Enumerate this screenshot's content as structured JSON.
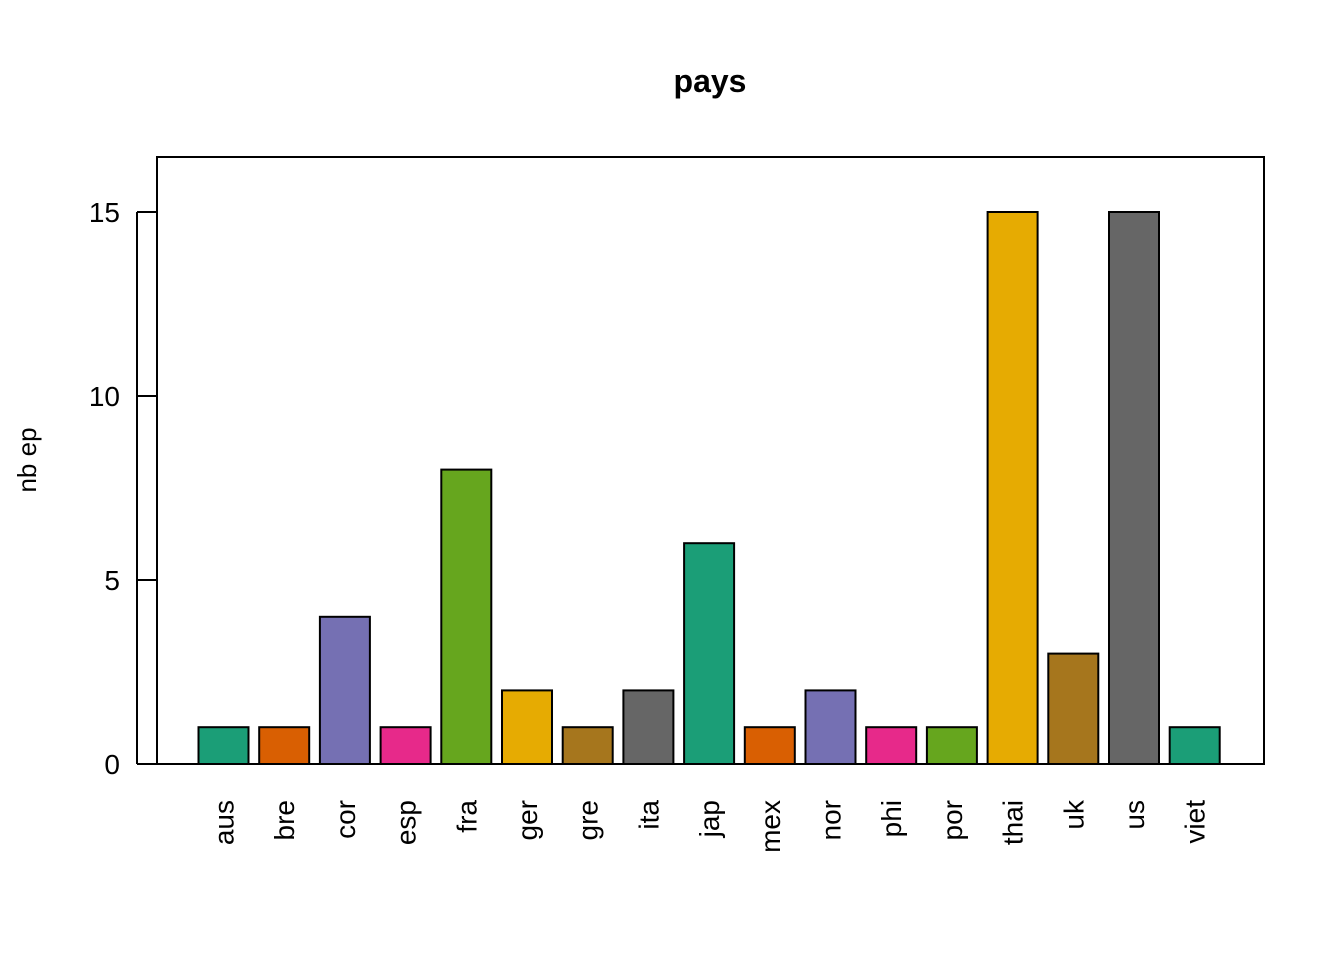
{
  "chart_data": {
    "type": "bar",
    "title": "pays",
    "xlabel": "",
    "ylabel": "nb ep",
    "ylim": [
      0,
      16.5
    ],
    "yticks": [
      0,
      5,
      10,
      15
    ],
    "categories": [
      "aus",
      "bre",
      "cor",
      "esp",
      "fra",
      "ger",
      "gre",
      "ita",
      "jap",
      "mex",
      "nor",
      "phi",
      "por",
      "thai",
      "uk",
      "us",
      "viet"
    ],
    "values": [
      1,
      1,
      4,
      1,
      8,
      2,
      1,
      2,
      6,
      1,
      2,
      1,
      1,
      15,
      3,
      15,
      1
    ],
    "colors": [
      "#1B9E77",
      "#D95F02",
      "#7570B3",
      "#E7298A",
      "#66A61E",
      "#E6AB02",
      "#A6761D",
      "#666666",
      "#1B9E77",
      "#D95F02",
      "#7570B3",
      "#E7298A",
      "#66A61E",
      "#E6AB02",
      "#A6761D",
      "#666666",
      "#1B9E77"
    ],
    "grid": false,
    "legend": "none"
  }
}
